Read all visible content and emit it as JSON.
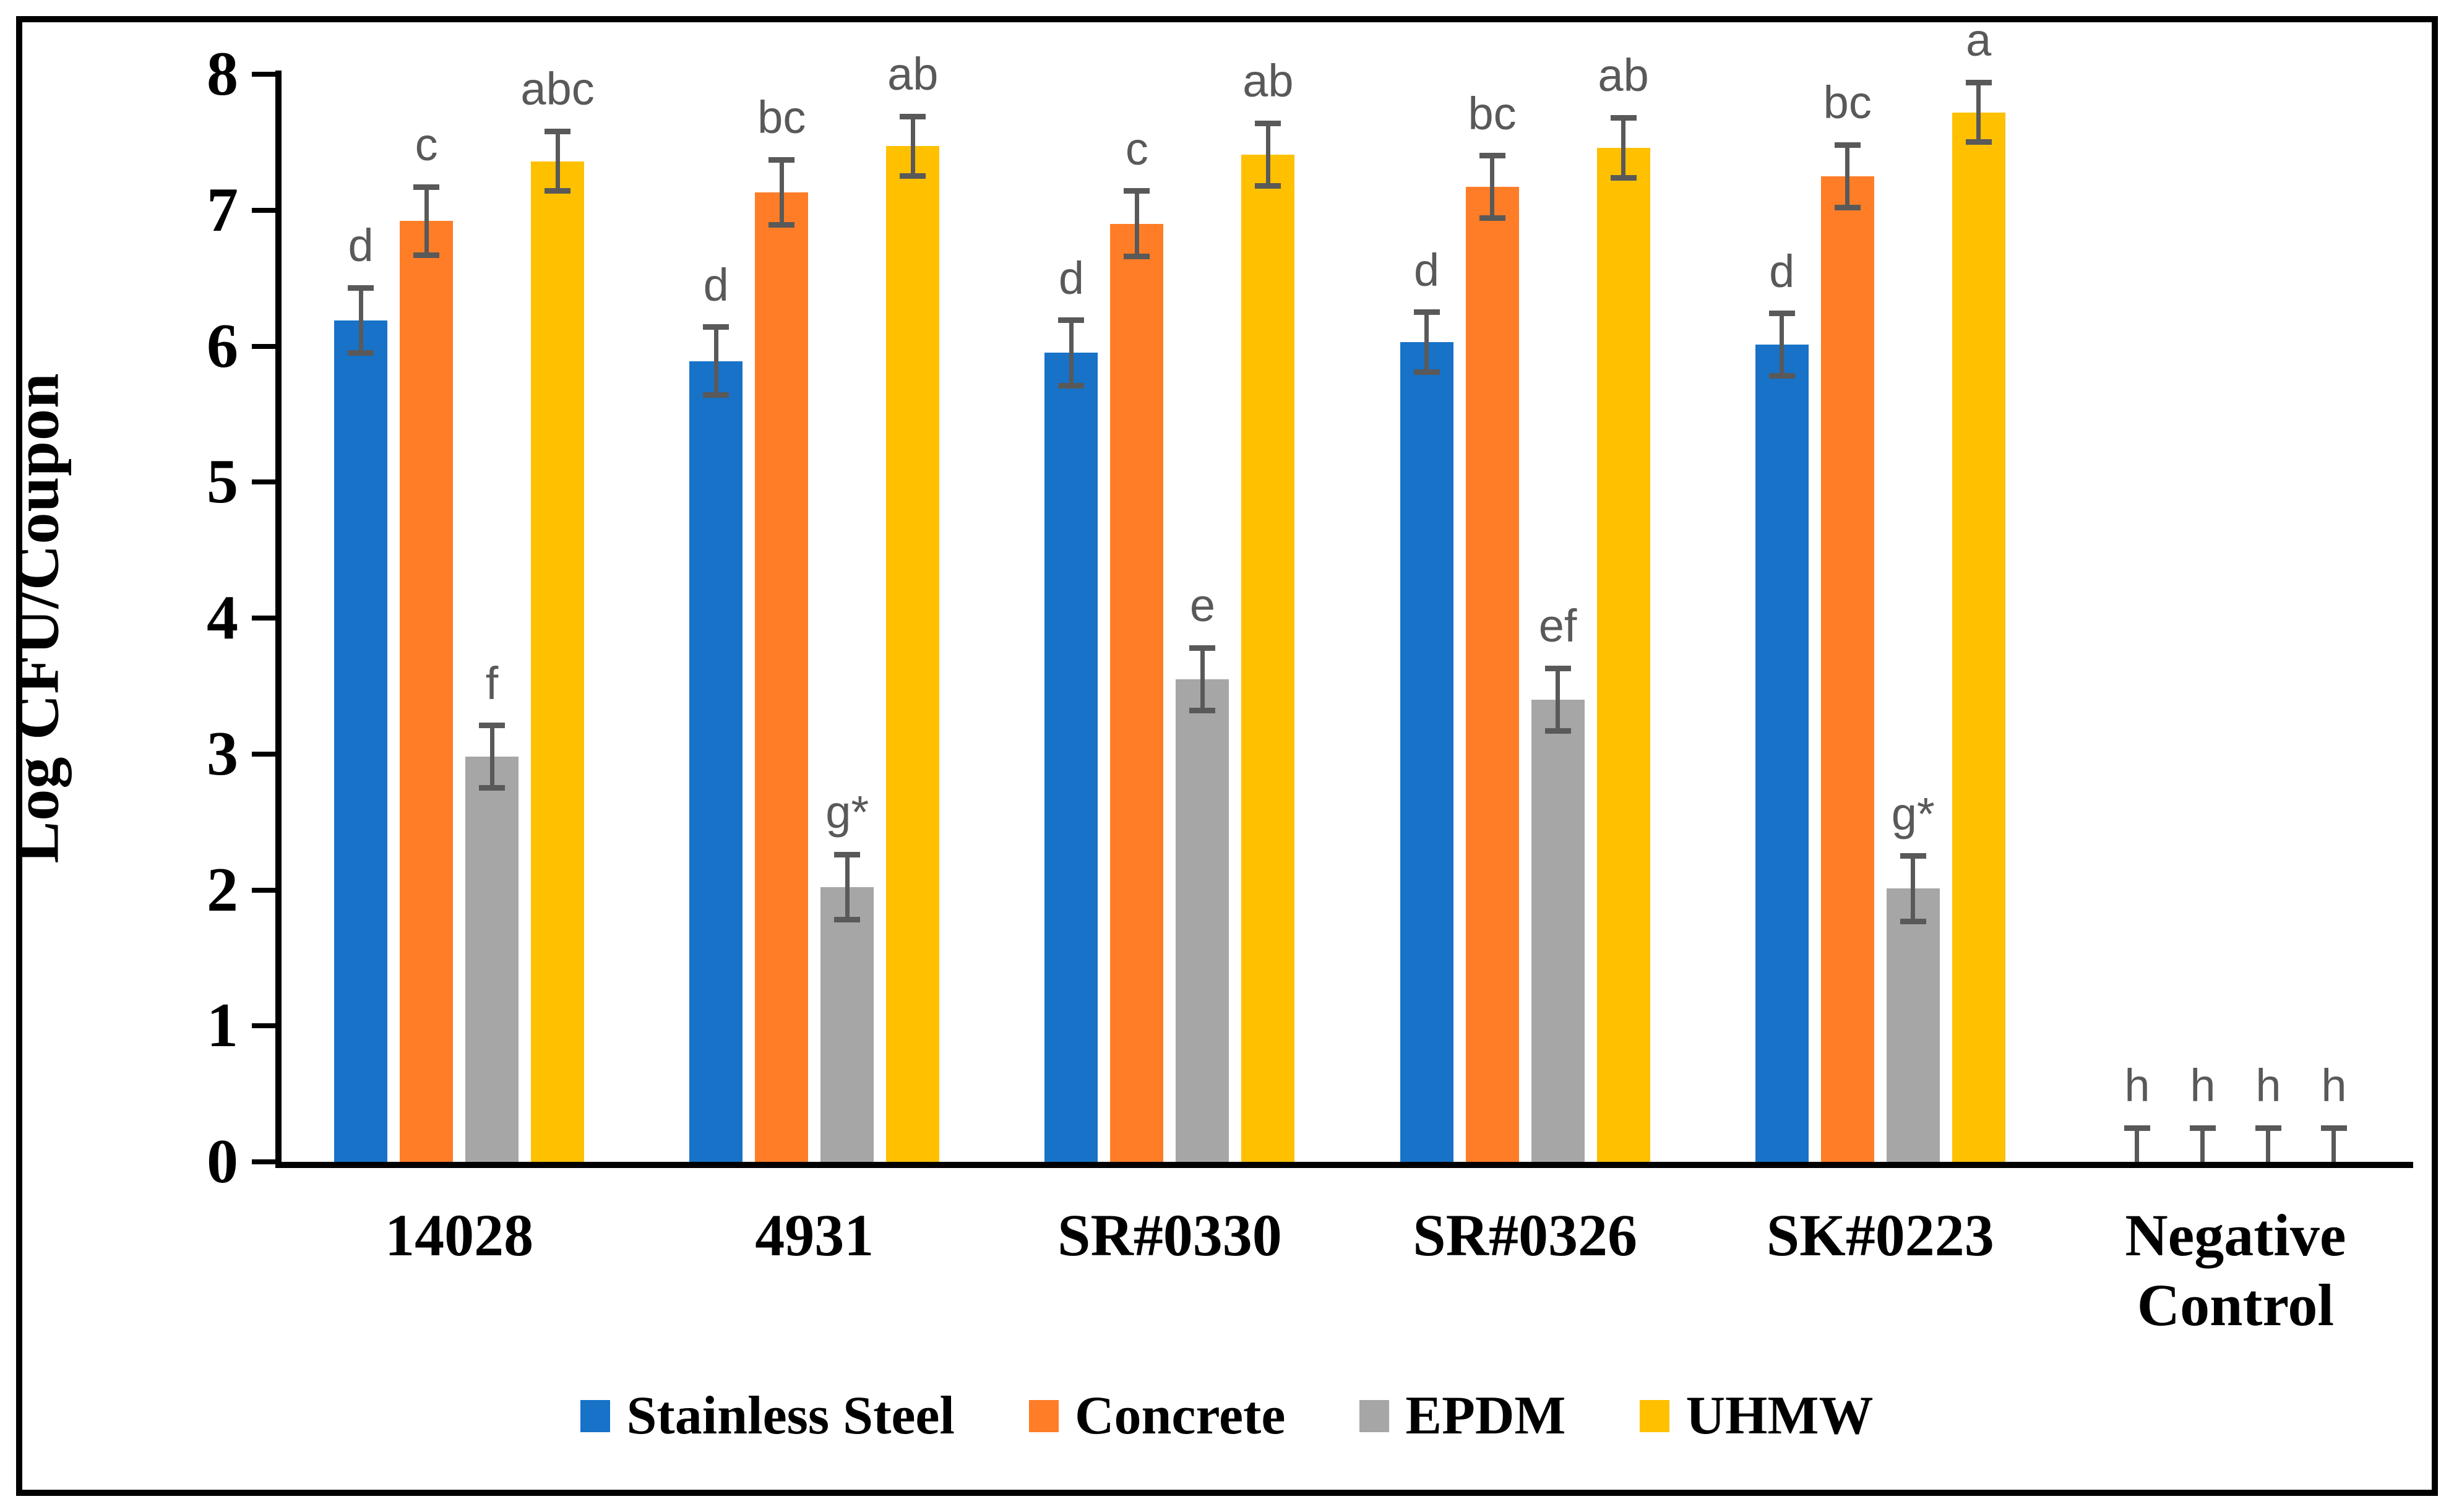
{
  "chart_data": {
    "type": "bar",
    "title": "",
    "xlabel": "",
    "ylabel": "Log CFU/Coupon",
    "ylim": [
      0,
      8
    ],
    "yticks": [
      0,
      1,
      2,
      3,
      4,
      5,
      6,
      7,
      8
    ],
    "grid": false,
    "legend_position": "bottom",
    "categories": [
      "14028",
      "4931",
      "SR#0330",
      "SR#0326",
      "SK#0223",
      "Negative Control"
    ],
    "series": [
      {
        "name": "Stainless Steel",
        "color": "#1772C8",
        "values": [
          6.19,
          5.89,
          5.95,
          6.03,
          6.01,
          0
        ],
        "errors": [
          0.24,
          0.25,
          0.24,
          0.22,
          0.23,
          0.25
        ],
        "sig_labels": [
          "d",
          "d",
          "d",
          "d",
          "d",
          "h"
        ]
      },
      {
        "name": "Concrete",
        "color": "#FF7D27",
        "values": [
          6.92,
          7.13,
          6.9,
          7.17,
          7.25,
          0
        ],
        "errors": [
          0.25,
          0.24,
          0.24,
          0.23,
          0.23,
          0.25
        ],
        "sig_labels": [
          "c",
          "bc",
          "c",
          "bc",
          "bc",
          "h"
        ]
      },
      {
        "name": "EPDM",
        "color": "#A6A6A6",
        "values": [
          2.98,
          2.02,
          3.55,
          3.4,
          2.01,
          0
        ],
        "errors": [
          0.23,
          0.24,
          0.23,
          0.23,
          0.24,
          0.25
        ],
        "sig_labels": [
          "f",
          "g*",
          "e",
          "ef",
          "g*",
          "h"
        ]
      },
      {
        "name": "UHMW",
        "color": "#FFC000",
        "values": [
          7.36,
          7.47,
          7.41,
          7.46,
          7.72,
          0
        ],
        "errors": [
          0.22,
          0.22,
          0.23,
          0.22,
          0.22,
          0.25
        ],
        "sig_labels": [
          "abc",
          "ab",
          "ab",
          "ab",
          "a",
          "h"
        ]
      }
    ],
    "error_bar_color": "#595959",
    "sig_letter_color": "#595959"
  }
}
